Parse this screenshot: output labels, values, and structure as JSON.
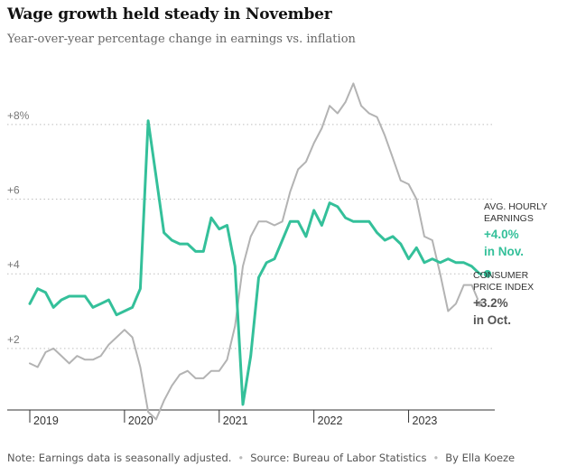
{
  "chart_data": {
    "type": "line",
    "title": "Wage growth held steady in November",
    "subtitle": "Year-over-year percentage change in earnings vs. inflation",
    "y_ticks": [
      {
        "value": 8,
        "label": "+8%"
      },
      {
        "value": 6,
        "label": "+6"
      },
      {
        "value": 4,
        "label": "+4"
      },
      {
        "value": 2,
        "label": "+2"
      }
    ],
    "ylim": [
      0.4,
      9.4
    ],
    "x_start": 2019.0,
    "x_end": 2023.91,
    "x_ticks": [
      "2019",
      "2020",
      "2021",
      "2022",
      "2023"
    ],
    "series": [
      {
        "name": "Avg. hourly earnings",
        "color": "#34c09a",
        "start": 2019.0,
        "step_months": 1,
        "values": [
          3.2,
          3.6,
          3.5,
          3.1,
          3.3,
          3.4,
          3.4,
          3.4,
          3.1,
          3.2,
          3.3,
          2.9,
          3.0,
          3.1,
          3.6,
          8.1,
          6.6,
          5.1,
          4.9,
          4.8,
          4.8,
          4.6,
          4.6,
          5.5,
          5.2,
          5.3,
          4.2,
          0.5,
          1.8,
          3.9,
          4.3,
          4.4,
          4.9,
          5.4,
          5.4,
          5.0,
          5.7,
          5.3,
          5.9,
          5.8,
          5.5,
          5.4,
          5.4,
          5.4,
          5.1,
          4.9,
          5.0,
          4.8,
          4.4,
          4.7,
          4.3,
          4.4,
          4.3,
          4.4,
          4.3,
          4.3,
          4.2,
          4.0,
          4.0
        ],
        "end_label": {
          "caption": [
            "AVG. HOURLY",
            "EARNINGS"
          ],
          "value": "+4.0%",
          "period": "in Nov."
        }
      },
      {
        "name": "Consumer price index",
        "color": "#b3b3b3",
        "start": 2019.0,
        "step_months": 1,
        "values": [
          1.6,
          1.5,
          1.9,
          2.0,
          1.8,
          1.6,
          1.8,
          1.7,
          1.7,
          1.8,
          2.1,
          2.3,
          2.5,
          2.3,
          1.5,
          0.3,
          0.1,
          0.6,
          1.0,
          1.3,
          1.4,
          1.2,
          1.2,
          1.4,
          1.4,
          1.7,
          2.6,
          4.2,
          5.0,
          5.4,
          5.4,
          5.3,
          5.4,
          6.2,
          6.8,
          7.0,
          7.5,
          7.9,
          8.5,
          8.3,
          8.6,
          9.1,
          8.5,
          8.3,
          8.2,
          7.7,
          7.1,
          6.5,
          6.4,
          6.0,
          5.0,
          4.9,
          4.0,
          3.0,
          3.2,
          3.7,
          3.7,
          3.2
        ],
        "end_label": {
          "caption": [
            "CONSUMER",
            "PRICE INDEX"
          ],
          "value": "+3.2%",
          "period": "in Oct."
        }
      }
    ]
  },
  "footer": {
    "note": "Note: Earnings data is seasonally adjusted.",
    "source": "Source: Bureau of Labor Statistics",
    "byline": "By Ella Koeze"
  }
}
